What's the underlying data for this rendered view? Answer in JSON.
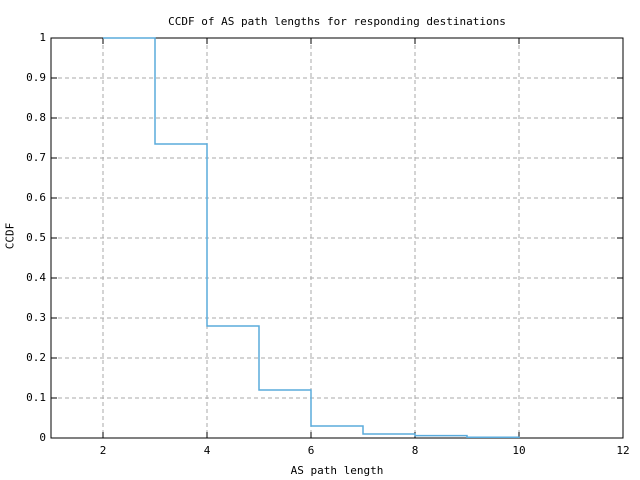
{
  "chart_data": {
    "type": "line",
    "style": "steps-post",
    "title": "CCDF of AS path lengths for responding destinations",
    "xlabel": "AS path length",
    "ylabel": "CCDF",
    "x": [
      2,
      3,
      4,
      5,
      6,
      7,
      8,
      9,
      10
    ],
    "y": [
      1.0,
      0.735,
      0.28,
      0.12,
      0.03,
      0.01,
      0.006,
      0.002,
      0.0
    ],
    "xlim": [
      1,
      12
    ],
    "ylim": [
      0,
      1
    ],
    "xticks": [
      2,
      4,
      6,
      8,
      10,
      12
    ],
    "xtick_labels": [
      "2",
      "4",
      "6",
      "8",
      "10",
      "12"
    ],
    "yticks": [
      0,
      0.1,
      0.2,
      0.3,
      0.4,
      0.5,
      0.6,
      0.7,
      0.8,
      0.9,
      1
    ],
    "ytick_labels": [
      "0",
      "0.1",
      "0.2",
      "0.3",
      "0.4",
      "0.5",
      "0.6",
      "0.7",
      "0.8",
      "0.9",
      "1"
    ],
    "grid": "dashed",
    "legend": "none",
    "line_color": "#5aabdc",
    "grid_color": "#aaaaaa",
    "axis_color": "#000000",
    "background_color": "#ffffff"
  }
}
